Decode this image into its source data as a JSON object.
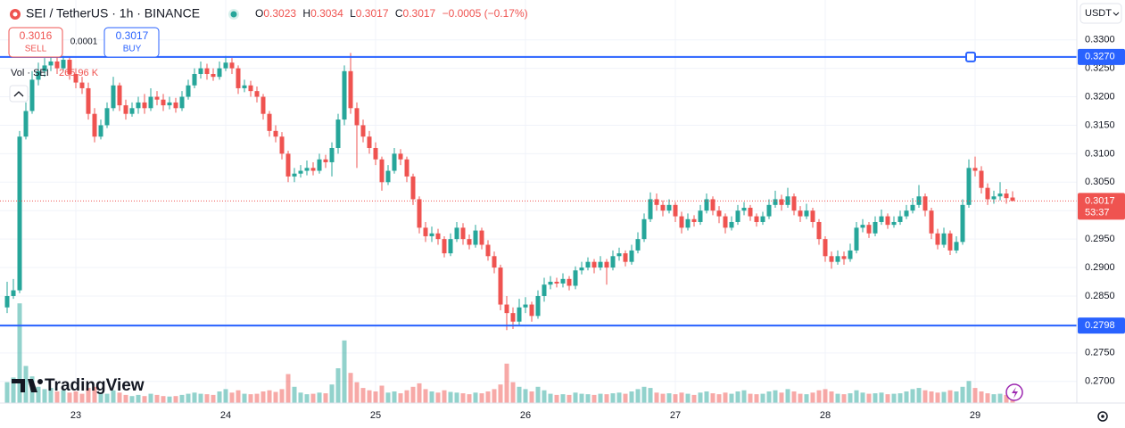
{
  "header": {
    "symbol": "SEI / TetherUS · 1h · BINANCE",
    "o_key": "O",
    "o": "0.3023",
    "h_key": "H",
    "h": "0.3034",
    "l_key": "L",
    "l": "0.3017",
    "c_key": "C",
    "c": "0.3017",
    "change": "−0.0005 (−0.17%)",
    "sell_price": "0.3016",
    "sell": "SELL",
    "spread": "0.0001",
    "buy_price": "0.3017",
    "buy": "BUY",
    "vol_label": "Vol · SEI",
    "vol_value": "265.96 K",
    "currency": "USDT",
    "brand": "TradingView"
  },
  "chart_data": {
    "type": "candlestick",
    "up_color": "#26a69a",
    "down_color": "#ef5350",
    "ylim": [
      0.2662,
      0.337
    ],
    "yticks": [
      {
        "value": 0.27,
        "label": "0.2700"
      },
      {
        "value": 0.275,
        "label": "0.2750"
      },
      {
        "value": 0.28,
        "label": "0.2800"
      },
      {
        "value": 0.285,
        "label": "0.2850"
      },
      {
        "value": 0.29,
        "label": "0.2900"
      },
      {
        "value": 0.295,
        "label": "0.2950"
      },
      {
        "value": 0.3,
        "label": "0.3000"
      },
      {
        "value": 0.305,
        "label": "0.3050"
      },
      {
        "value": 0.31,
        "label": "0.3100"
      },
      {
        "value": 0.315,
        "label": "0.3150"
      },
      {
        "value": 0.32,
        "label": "0.3200"
      },
      {
        "value": 0.325,
        "label": "0.3250"
      },
      {
        "value": 0.33,
        "label": "0.3300"
      }
    ],
    "grid": true,
    "hlines": [
      {
        "value": 0.327,
        "label": "0.3270",
        "color": "#2962ff"
      },
      {
        "value": 0.2798,
        "label": "0.2798",
        "color": "#2962ff"
      }
    ],
    "last_price": {
      "value": 0.3017,
      "label": "0.3017"
    },
    "countdown": "53:37",
    "vlim": [
      0,
      5000
    ],
    "categories": [
      null,
      null,
      null,
      null,
      null,
      null,
      null,
      null,
      null,
      null,
      null,
      "23",
      null,
      null,
      null,
      null,
      null,
      null,
      null,
      null,
      null,
      null,
      null,
      null,
      null,
      null,
      null,
      null,
      null,
      null,
      null,
      null,
      null,
      null,
      null,
      "24",
      null,
      null,
      null,
      null,
      null,
      null,
      null,
      null,
      null,
      null,
      null,
      null,
      null,
      null,
      null,
      null,
      null,
      null,
      null,
      null,
      null,
      null,
      null,
      "25",
      null,
      null,
      null,
      null,
      null,
      null,
      null,
      null,
      null,
      null,
      null,
      null,
      null,
      null,
      null,
      null,
      null,
      null,
      null,
      null,
      null,
      null,
      null,
      "26",
      null,
      null,
      null,
      null,
      null,
      null,
      null,
      null,
      null,
      null,
      null,
      null,
      null,
      null,
      null,
      null,
      null,
      null,
      null,
      null,
      null,
      null,
      null,
      "27",
      null,
      null,
      null,
      null,
      null,
      null,
      null,
      null,
      null,
      null,
      null,
      null,
      null,
      null,
      null,
      null,
      null,
      null,
      null,
      null,
      null,
      null,
      null,
      "28",
      null,
      null,
      null,
      null,
      null,
      null,
      null,
      null,
      null,
      null,
      null,
      null,
      null,
      null,
      null,
      null,
      null,
      null,
      null,
      null,
      null,
      null,
      null,
      "29",
      null,
      null,
      null,
      null,
      null,
      null
    ],
    "candles": [
      [
        0.283,
        0.2875,
        0.282,
        0.285
      ],
      [
        0.285,
        0.288,
        0.2845,
        0.286
      ],
      [
        0.286,
        0.314,
        0.2855,
        0.313
      ],
      [
        0.313,
        0.319,
        0.3125,
        0.3175
      ],
      [
        0.3175,
        0.3245,
        0.317,
        0.323
      ],
      [
        0.323,
        0.326,
        0.322,
        0.3245
      ],
      [
        0.3245,
        0.3268,
        0.3235,
        0.3255
      ],
      [
        0.3255,
        0.3275,
        0.3245,
        0.3262
      ],
      [
        0.3262,
        0.327,
        0.324,
        0.325
      ],
      [
        0.325,
        0.3272,
        0.3245,
        0.3265
      ],
      [
        0.3265,
        0.327,
        0.323,
        0.324
      ],
      [
        0.324,
        0.325,
        0.3215,
        0.3225
      ],
      [
        0.3225,
        0.3235,
        0.3205,
        0.3215
      ],
      [
        0.3215,
        0.3225,
        0.316,
        0.317
      ],
      [
        0.317,
        0.318,
        0.312,
        0.313
      ],
      [
        0.313,
        0.316,
        0.3125,
        0.315
      ],
      [
        0.315,
        0.319,
        0.3145,
        0.318
      ],
      [
        0.318,
        0.3235,
        0.3175,
        0.322
      ],
      [
        0.322,
        0.3225,
        0.3175,
        0.3185
      ],
      [
        0.3185,
        0.3195,
        0.316,
        0.317
      ],
      [
        0.317,
        0.319,
        0.3165,
        0.318
      ],
      [
        0.318,
        0.32,
        0.317,
        0.319
      ],
      [
        0.319,
        0.3205,
        0.317,
        0.318
      ],
      [
        0.318,
        0.3215,
        0.3175,
        0.32
      ],
      [
        0.32,
        0.321,
        0.3185,
        0.3195
      ],
      [
        0.3195,
        0.3205,
        0.3175,
        0.3185
      ],
      [
        0.3185,
        0.32,
        0.3178,
        0.319
      ],
      [
        0.319,
        0.3198,
        0.3172,
        0.318
      ],
      [
        0.318,
        0.321,
        0.3175,
        0.32
      ],
      [
        0.32,
        0.323,
        0.3195,
        0.322
      ],
      [
        0.322,
        0.325,
        0.3215,
        0.324
      ],
      [
        0.324,
        0.3262,
        0.3232,
        0.325
      ],
      [
        0.325,
        0.3258,
        0.323,
        0.324
      ],
      [
        0.324,
        0.325,
        0.3228,
        0.3235
      ],
      [
        0.3235,
        0.3262,
        0.323,
        0.325
      ],
      [
        0.325,
        0.3272,
        0.3245,
        0.326
      ],
      [
        0.326,
        0.3268,
        0.324,
        0.325
      ],
      [
        0.325,
        0.3255,
        0.3205,
        0.3215
      ],
      [
        0.3215,
        0.323,
        0.3208,
        0.322
      ],
      [
        0.322,
        0.3228,
        0.32,
        0.321
      ],
      [
        0.321,
        0.3218,
        0.319,
        0.32
      ],
      [
        0.32,
        0.3205,
        0.316,
        0.317
      ],
      [
        0.317,
        0.3175,
        0.313,
        0.314
      ],
      [
        0.314,
        0.315,
        0.312,
        0.313
      ],
      [
        0.313,
        0.3138,
        0.309,
        0.31
      ],
      [
        0.31,
        0.3105,
        0.305,
        0.306
      ],
      [
        0.306,
        0.3075,
        0.305,
        0.3065
      ],
      [
        0.3065,
        0.308,
        0.3058,
        0.307
      ],
      [
        0.307,
        0.3088,
        0.3062,
        0.3075
      ],
      [
        0.3075,
        0.3085,
        0.3062,
        0.307
      ],
      [
        0.307,
        0.31,
        0.3065,
        0.309
      ],
      [
        0.309,
        0.3098,
        0.3075,
        0.3085
      ],
      [
        0.3085,
        0.312,
        0.306,
        0.311
      ],
      [
        0.311,
        0.317,
        0.31,
        0.316
      ],
      [
        0.316,
        0.3255,
        0.315,
        0.3245
      ],
      [
        0.3245,
        0.3277,
        0.317,
        0.318
      ],
      [
        0.318,
        0.319,
        0.3075,
        0.315
      ],
      [
        0.315,
        0.316,
        0.312,
        0.313
      ],
      [
        0.313,
        0.314,
        0.31,
        0.311
      ],
      [
        0.311,
        0.312,
        0.308,
        0.309
      ],
      [
        0.309,
        0.3095,
        0.3035,
        0.305
      ],
      [
        0.305,
        0.308,
        0.3045,
        0.307
      ],
      [
        0.307,
        0.311,
        0.3065,
        0.31
      ],
      [
        0.31,
        0.3108,
        0.308,
        0.309
      ],
      [
        0.309,
        0.3095,
        0.305,
        0.306
      ],
      [
        0.306,
        0.3065,
        0.301,
        0.302
      ],
      [
        0.302,
        0.3025,
        0.296,
        0.297
      ],
      [
        0.297,
        0.298,
        0.2945,
        0.2955
      ],
      [
        0.2955,
        0.2972,
        0.2945,
        0.296
      ],
      [
        0.296,
        0.2968,
        0.294,
        0.295
      ],
      [
        0.295,
        0.2955,
        0.2918,
        0.2925
      ],
      [
        0.2925,
        0.296,
        0.292,
        0.295
      ],
      [
        0.295,
        0.298,
        0.2945,
        0.297
      ],
      [
        0.297,
        0.2978,
        0.294,
        0.295
      ],
      [
        0.295,
        0.2958,
        0.2932,
        0.294
      ],
      [
        0.294,
        0.2975,
        0.2935,
        0.2965
      ],
      [
        0.2965,
        0.297,
        0.2932,
        0.294
      ],
      [
        0.294,
        0.2948,
        0.2912,
        0.292
      ],
      [
        0.292,
        0.2928,
        0.289,
        0.29
      ],
      [
        0.29,
        0.2905,
        0.2825,
        0.2835
      ],
      [
        0.2835,
        0.285,
        0.279,
        0.282
      ],
      [
        0.282,
        0.283,
        0.2792,
        0.2805
      ],
      [
        0.2805,
        0.2845,
        0.2798,
        0.283
      ],
      [
        0.283,
        0.2848,
        0.282,
        0.2835
      ],
      [
        0.2835,
        0.284,
        0.2805,
        0.2815
      ],
      [
        0.2815,
        0.286,
        0.281,
        0.285
      ],
      [
        0.285,
        0.2882,
        0.284,
        0.287
      ],
      [
        0.287,
        0.2885,
        0.2862,
        0.2875
      ],
      [
        0.2875,
        0.2882,
        0.2865,
        0.2872
      ],
      [
        0.2872,
        0.289,
        0.2865,
        0.288
      ],
      [
        0.288,
        0.2885,
        0.286,
        0.2868
      ],
      [
        0.2868,
        0.2902,
        0.2862,
        0.2895
      ],
      [
        0.2895,
        0.291,
        0.2888,
        0.29
      ],
      [
        0.29,
        0.2918,
        0.2895,
        0.291
      ],
      [
        0.291,
        0.2915,
        0.289,
        0.29
      ],
      [
        0.29,
        0.292,
        0.2895,
        0.291
      ],
      [
        0.291,
        0.2915,
        0.287,
        0.29
      ],
      [
        0.29,
        0.293,
        0.2895,
        0.292
      ],
      [
        0.292,
        0.2935,
        0.2912,
        0.2925
      ],
      [
        0.2925,
        0.293,
        0.2902,
        0.291
      ],
      [
        0.291,
        0.294,
        0.2905,
        0.293
      ],
      [
        0.293,
        0.2962,
        0.2925,
        0.295
      ],
      [
        0.295,
        0.2995,
        0.2945,
        0.2985
      ],
      [
        0.2985,
        0.3032,
        0.298,
        0.302
      ],
      [
        0.302,
        0.303,
        0.3,
        0.301
      ],
      [
        0.301,
        0.3018,
        0.299,
        0.3
      ],
      [
        0.3,
        0.302,
        0.2995,
        0.301
      ],
      [
        0.301,
        0.3015,
        0.298,
        0.299
      ],
      [
        0.299,
        0.2998,
        0.296,
        0.297
      ],
      [
        0.297,
        0.2995,
        0.2965,
        0.2985
      ],
      [
        0.2985,
        0.2992,
        0.2972,
        0.298
      ],
      [
        0.298,
        0.301,
        0.2975,
        0.3
      ],
      [
        0.3,
        0.303,
        0.2995,
        0.302
      ],
      [
        0.302,
        0.3025,
        0.2992,
        0.3
      ],
      [
        0.3,
        0.3008,
        0.2978,
        0.299
      ],
      [
        0.299,
        0.2995,
        0.296,
        0.297
      ],
      [
        0.297,
        0.299,
        0.2965,
        0.298
      ],
      [
        0.298,
        0.301,
        0.2975,
        0.3
      ],
      [
        0.3,
        0.3015,
        0.2992,
        0.3005
      ],
      [
        0.3005,
        0.301,
        0.2982,
        0.299
      ],
      [
        0.299,
        0.2995,
        0.2972,
        0.298
      ],
      [
        0.298,
        0.2998,
        0.2975,
        0.299
      ],
      [
        0.299,
        0.302,
        0.2985,
        0.301
      ],
      [
        0.301,
        0.3035,
        0.3005,
        0.302
      ],
      [
        0.302,
        0.3028,
        0.3,
        0.301
      ],
      [
        0.301,
        0.304,
        0.3005,
        0.3025
      ],
      [
        0.3025,
        0.303,
        0.2992,
        0.3
      ],
      [
        0.3,
        0.3008,
        0.298,
        0.299
      ],
      [
        0.299,
        0.3012,
        0.2985,
        0.3
      ],
      [
        0.3,
        0.3005,
        0.297,
        0.298
      ],
      [
        0.298,
        0.2985,
        0.294,
        0.295
      ],
      [
        0.295,
        0.2955,
        0.291,
        0.292
      ],
      [
        0.292,
        0.2928,
        0.2898,
        0.291
      ],
      [
        0.291,
        0.293,
        0.2905,
        0.292
      ],
      [
        0.292,
        0.2928,
        0.2905,
        0.2915
      ],
      [
        0.2915,
        0.2942,
        0.291,
        0.293
      ],
      [
        0.293,
        0.298,
        0.2925,
        0.297
      ],
      [
        0.297,
        0.2985,
        0.2962,
        0.2975
      ],
      [
        0.2975,
        0.298,
        0.2952,
        0.296
      ],
      [
        0.296,
        0.299,
        0.2955,
        0.298
      ],
      [
        0.298,
        0.3002,
        0.2975,
        0.299
      ],
      [
        0.299,
        0.2995,
        0.2968,
        0.2975
      ],
      [
        0.2975,
        0.299,
        0.297,
        0.298
      ],
      [
        0.298,
        0.3,
        0.2975,
        0.299
      ],
      [
        0.299,
        0.301,
        0.2985,
        0.3
      ],
      [
        0.3,
        0.3022,
        0.2995,
        0.301
      ],
      [
        0.301,
        0.3045,
        0.3005,
        0.3025
      ],
      [
        0.3025,
        0.303,
        0.299,
        0.3
      ],
      [
        0.3,
        0.3005,
        0.295,
        0.296
      ],
      [
        0.296,
        0.2968,
        0.2932,
        0.294
      ],
      [
        0.294,
        0.297,
        0.2935,
        0.296
      ],
      [
        0.296,
        0.2965,
        0.2922,
        0.293
      ],
      [
        0.293,
        0.2955,
        0.2925,
        0.2945
      ],
      [
        0.2945,
        0.302,
        0.294,
        0.301
      ],
      [
        0.301,
        0.309,
        0.3005,
        0.3075
      ],
      [
        0.3075,
        0.3095,
        0.306,
        0.307
      ],
      [
        0.307,
        0.3078,
        0.303,
        0.304
      ],
      [
        0.304,
        0.3048,
        0.301,
        0.302
      ],
      [
        0.302,
        0.3035,
        0.3012,
        0.3025
      ],
      [
        0.3025,
        0.305,
        0.3018,
        0.303
      ],
      [
        0.303,
        0.3038,
        0.3012,
        0.3022
      ],
      [
        0.3023,
        0.3034,
        0.3017,
        0.3017
      ]
    ],
    "volume": [
      900,
      1100,
      4300,
      1600,
      1150,
      700,
      600,
      650,
      500,
      550,
      450,
      500,
      400,
      650,
      700,
      450,
      400,
      550,
      450,
      350,
      300,
      350,
      300,
      400,
      350,
      300,
      280,
      300,
      350,
      400,
      450,
      400,
      380,
      350,
      500,
      600,
      450,
      550,
      400,
      380,
      400,
      500,
      550,
      480,
      600,
      1250,
      700,
      450,
      380,
      400,
      450,
      420,
      800,
      1500,
      2700,
      1300,
      900,
      650,
      550,
      500,
      750,
      450,
      500,
      420,
      550,
      700,
      850,
      600,
      500,
      450,
      550,
      480,
      450,
      420,
      380,
      450,
      420,
      500,
      600,
      800,
      1700,
      900,
      700,
      600,
      500,
      700,
      550,
      400,
      350,
      380,
      350,
      450,
      400,
      380,
      350,
      400,
      380,
      420,
      450,
      400,
      500,
      600,
      700,
      650,
      450,
      400,
      420,
      380,
      450,
      400,
      350,
      450,
      500,
      420,
      380,
      450,
      400,
      500,
      550,
      400,
      380,
      400,
      500,
      550,
      450,
      600,
      500,
      400,
      380,
      450,
      550,
      600,
      500,
      400,
      380,
      420,
      550,
      450,
      400,
      420,
      450,
      380,
      400,
      420,
      500,
      600,
      650,
      550,
      500,
      450,
      480,
      550,
      500,
      700,
      950,
      650,
      500,
      420,
      380,
      400,
      350,
      265.96
    ]
  }
}
